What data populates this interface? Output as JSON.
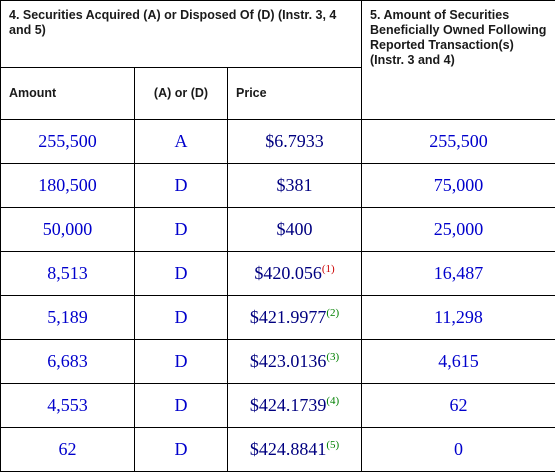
{
  "header": {
    "section4_title": "4. Securities Acquired (A) or Disposed Of (D) (Instr. 3, 4 and 5)",
    "section5_title": "5. Amount of Securities Beneficially Owned Following Reported Transaction(s) (Instr. 3 and 4)",
    "col_amount": "Amount",
    "col_aord": "(A) or (D)",
    "col_price": "Price"
  },
  "rows": [
    {
      "amount": "255,500",
      "aord": "A",
      "price": "$6.7933",
      "footnote": "",
      "owned": "255,500"
    },
    {
      "amount": "180,500",
      "aord": "D",
      "price": "$381",
      "footnote": "",
      "owned": "75,000"
    },
    {
      "amount": "50,000",
      "aord": "D",
      "price": "$400",
      "footnote": "",
      "owned": "25,000"
    },
    {
      "amount": "8,513",
      "aord": "D",
      "price": "$420.056",
      "footnote": "(1)",
      "owned": "16,487"
    },
    {
      "amount": "5,189",
      "aord": "D",
      "price": "$421.9977",
      "footnote": "(2)",
      "owned": "11,298"
    },
    {
      "amount": "6,683",
      "aord": "D",
      "price": "$423.0136",
      "footnote": "(3)",
      "owned": "4,615"
    },
    {
      "amount": "4,553",
      "aord": "D",
      "price": "$424.1739",
      "footnote": "(4)",
      "owned": "62"
    },
    {
      "amount": "62",
      "aord": "D",
      "price": "$424.8841",
      "footnote": "(5)",
      "owned": "0"
    }
  ],
  "colors": {
    "value_text": "#0000cc",
    "price_text": "#000080",
    "footnote_1": "#cc0000",
    "footnote_other": "#008000"
  }
}
